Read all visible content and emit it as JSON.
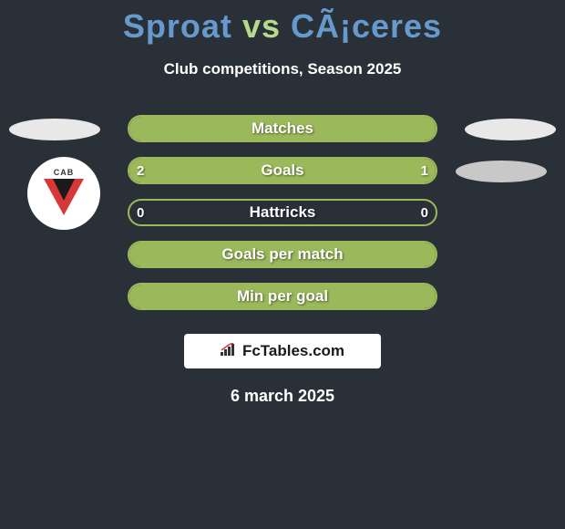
{
  "title": {
    "left": "Sproat",
    "vs": "vs",
    "right": "CÃ¡ceres",
    "left_color": "#6699cc",
    "vs_color": "#b8d98c",
    "right_color": "#6699cc"
  },
  "subtitle": "Club competitions, Season 2025",
  "stats": [
    {
      "label": "Matches",
      "left_value": "",
      "right_value": "",
      "left_fill_pct": 100,
      "right_fill_pct": 0,
      "border_color": "#9bb85a"
    },
    {
      "label": "Goals",
      "left_value": "2",
      "right_value": "1",
      "left_fill_pct": 66,
      "right_fill_pct": 34,
      "border_color": "#9bb85a"
    },
    {
      "label": "Hattricks",
      "left_value": "0",
      "right_value": "0",
      "left_fill_pct": 0,
      "right_fill_pct": 0,
      "border_color": "#9bb85a"
    },
    {
      "label": "Goals per match",
      "left_value": "",
      "right_value": "",
      "left_fill_pct": 100,
      "right_fill_pct": 0,
      "border_color": "#9bb85a"
    },
    {
      "label": "Min per goal",
      "left_value": "",
      "right_value": "",
      "left_fill_pct": 100,
      "right_fill_pct": 0,
      "border_color": "#9bb85a"
    }
  ],
  "bar_fill_color": "#9bb85a",
  "background_color": "#2a3038",
  "watermark": {
    "text": "FcTables.com",
    "icon": "📊"
  },
  "date": "6 march 2025",
  "badge_text": "CAB",
  "side_ellipses": {
    "left1_bg": "#e8e8e8",
    "right1_bg": "#e8e8e8",
    "right2_bg": "#c8c8c8"
  }
}
